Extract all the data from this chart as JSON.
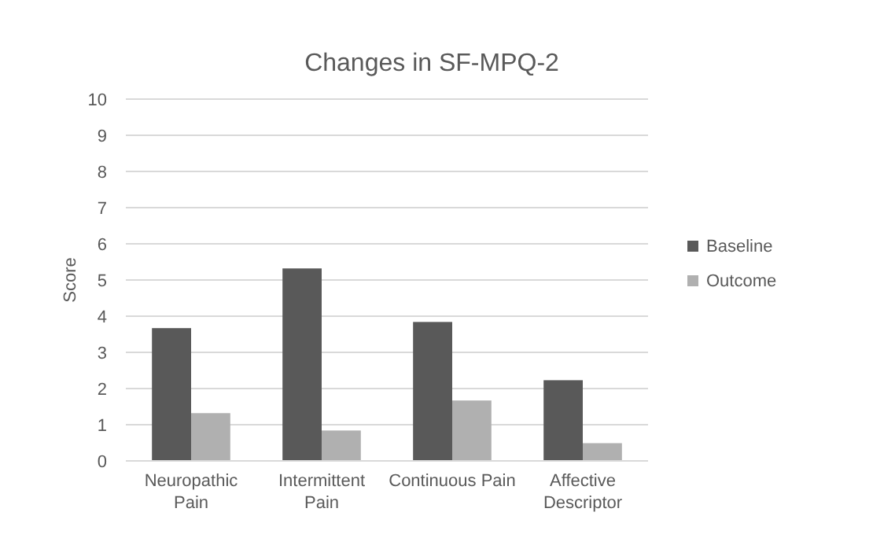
{
  "chart_data": {
    "type": "bar",
    "title": "Changes in SF-MPQ-2",
    "ylabel": "Score",
    "categories": [
      "Neuropathic Pain",
      "Intermittent Pain",
      "Continuous Pain",
      "Affective Descriptor"
    ],
    "series": [
      {
        "name": "Baseline",
        "color": "#595959",
        "values": [
          3.67,
          5.32,
          3.84,
          2.23
        ]
      },
      {
        "name": "Outcome",
        "color": "#b0b0b0",
        "values": [
          1.32,
          0.84,
          1.67,
          0.49
        ]
      }
    ],
    "ylim": [
      0,
      10
    ],
    "yticks": [
      0,
      1,
      2,
      3,
      4,
      5,
      6,
      7,
      8,
      9,
      10
    ],
    "grid": "y",
    "legend": "right"
  }
}
